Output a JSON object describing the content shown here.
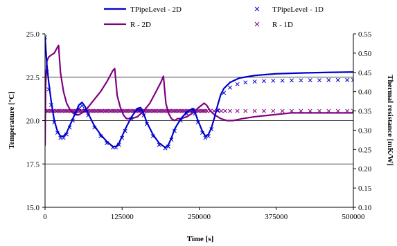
{
  "chart_data": {
    "type": "line",
    "title": "",
    "xlabel": "Time [s]",
    "ylabel_left": "Temperature [°C]",
    "ylabel_right": "Thermal resistance [mK/W]",
    "xlim": [
      0,
      500000
    ],
    "ylim_left": [
      15.0,
      25.0
    ],
    "ylim_right": [
      0.1,
      0.55
    ],
    "x_ticks": [
      "0",
      "125000",
      "250000",
      "375000",
      "500000"
    ],
    "y_left_ticks": [
      "15.0",
      "17.5",
      "20.0",
      "22.5",
      "25.0"
    ],
    "y_right_ticks": [
      "0.10",
      "0.15",
      "0.20",
      "0.25",
      "0.30",
      "0.35",
      "0.40",
      "0.45",
      "0.50",
      "0.55"
    ],
    "gridlines_y_left": [
      17.5,
      20.0,
      22.5
    ],
    "legend_position": "top",
    "series": [
      {
        "name": "TPipeLevel - 2D",
        "axis": "left",
        "style": "line",
        "color": "#0000CC",
        "points": [
          [
            0,
            24.8
          ],
          [
            3000,
            23.2
          ],
          [
            6000,
            22.2
          ],
          [
            10000,
            21.1
          ],
          [
            15000,
            20.0
          ],
          [
            20000,
            19.4
          ],
          [
            25000,
            19.1
          ],
          [
            30000,
            19.1
          ],
          [
            35000,
            19.3
          ],
          [
            40000,
            19.7
          ],
          [
            45000,
            20.1
          ],
          [
            50000,
            20.5
          ],
          [
            55000,
            20.9
          ],
          [
            60000,
            21.05
          ],
          [
            65000,
            20.8
          ],
          [
            70000,
            20.4
          ],
          [
            80000,
            19.7
          ],
          [
            90000,
            19.2
          ],
          [
            100000,
            18.8
          ],
          [
            110000,
            18.5
          ],
          [
            115000,
            18.5
          ],
          [
            120000,
            18.7
          ],
          [
            125000,
            19.1
          ],
          [
            130000,
            19.5
          ],
          [
            140000,
            20.2
          ],
          [
            150000,
            20.7
          ],
          [
            155000,
            20.75
          ],
          [
            160000,
            20.4
          ],
          [
            165000,
            19.9
          ],
          [
            175000,
            19.2
          ],
          [
            185000,
            18.7
          ],
          [
            195000,
            18.45
          ],
          [
            200000,
            18.6
          ],
          [
            205000,
            19.0
          ],
          [
            210000,
            19.5
          ],
          [
            220000,
            20.1
          ],
          [
            230000,
            20.5
          ],
          [
            240000,
            20.7
          ],
          [
            243000,
            20.5
          ],
          [
            248000,
            20.0
          ],
          [
            255000,
            19.4
          ],
          [
            260000,
            19.1
          ],
          [
            265000,
            19.2
          ],
          [
            270000,
            19.6
          ],
          [
            275000,
            20.2
          ],
          [
            280000,
            20.9
          ],
          [
            285000,
            21.5
          ],
          [
            290000,
            21.85
          ],
          [
            300000,
            22.2
          ],
          [
            315000,
            22.45
          ],
          [
            340000,
            22.6
          ],
          [
            375000,
            22.7
          ],
          [
            420000,
            22.75
          ],
          [
            460000,
            22.78
          ],
          [
            500000,
            22.8
          ]
        ]
      },
      {
        "name": "TPipeLevel - 1D",
        "axis": "left",
        "style": "markers",
        "marker": "×",
        "color": "#0000CC",
        "points": [
          [
            0,
            24.8
          ],
          [
            3000,
            22.8
          ],
          [
            6000,
            21.8
          ],
          [
            10000,
            20.9
          ],
          [
            15000,
            19.9
          ],
          [
            20000,
            19.3
          ],
          [
            25000,
            19.0
          ],
          [
            30000,
            19.0
          ],
          [
            35000,
            19.2
          ],
          [
            40000,
            19.6
          ],
          [
            45000,
            20.0
          ],
          [
            50000,
            20.4
          ],
          [
            55000,
            20.7
          ],
          [
            60000,
            20.85
          ],
          [
            65000,
            20.6
          ],
          [
            70000,
            20.3
          ],
          [
            80000,
            19.6
          ],
          [
            90000,
            19.1
          ],
          [
            100000,
            18.7
          ],
          [
            110000,
            18.45
          ],
          [
            115000,
            18.45
          ],
          [
            120000,
            18.6
          ],
          [
            125000,
            19.0
          ],
          [
            130000,
            19.4
          ],
          [
            140000,
            20.1
          ],
          [
            150000,
            20.6
          ],
          [
            155000,
            20.6
          ],
          [
            160000,
            20.3
          ],
          [
            165000,
            19.8
          ],
          [
            175000,
            19.1
          ],
          [
            185000,
            18.6
          ],
          [
            195000,
            18.4
          ],
          [
            200000,
            18.5
          ],
          [
            205000,
            18.9
          ],
          [
            210000,
            19.4
          ],
          [
            220000,
            20.0
          ],
          [
            230000,
            20.4
          ],
          [
            240000,
            20.6
          ],
          [
            243000,
            20.4
          ],
          [
            248000,
            19.9
          ],
          [
            255000,
            19.3
          ],
          [
            260000,
            19.0
          ],
          [
            265000,
            19.1
          ],
          [
            270000,
            19.5
          ],
          [
            280000,
            20.6
          ],
          [
            290000,
            21.6
          ],
          [
            300000,
            21.9
          ],
          [
            312000,
            22.1
          ],
          [
            325000,
            22.2
          ],
          [
            340000,
            22.25
          ],
          [
            355000,
            22.28
          ],
          [
            370000,
            22.3
          ],
          [
            385000,
            22.3
          ],
          [
            400000,
            22.32
          ],
          [
            415000,
            22.32
          ],
          [
            430000,
            22.33
          ],
          [
            445000,
            22.33
          ],
          [
            460000,
            22.34
          ],
          [
            475000,
            22.34
          ],
          [
            490000,
            22.34
          ],
          [
            500000,
            22.34
          ]
        ]
      },
      {
        "name": "R - 2D",
        "axis": "right",
        "style": "line",
        "color": "#800080",
        "points": [
          [
            0,
            0.26
          ],
          [
            1000,
            0.42
          ],
          [
            3000,
            0.48
          ],
          [
            6000,
            0.49
          ],
          [
            10000,
            0.495
          ],
          [
            15000,
            0.5
          ],
          [
            20000,
            0.515
          ],
          [
            22000,
            0.52
          ],
          [
            25000,
            0.45
          ],
          [
            30000,
            0.4
          ],
          [
            35000,
            0.37
          ],
          [
            40000,
            0.355
          ],
          [
            45000,
            0.345
          ],
          [
            50000,
            0.34
          ],
          [
            55000,
            0.34
          ],
          [
            60000,
            0.345
          ],
          [
            65000,
            0.35
          ],
          [
            70000,
            0.36
          ],
          [
            80000,
            0.38
          ],
          [
            90000,
            0.4
          ],
          [
            100000,
            0.425
          ],
          [
            105000,
            0.44
          ],
          [
            110000,
            0.455
          ],
          [
            113000,
            0.46
          ],
          [
            117000,
            0.39
          ],
          [
            122000,
            0.36
          ],
          [
            127000,
            0.34
          ],
          [
            132000,
            0.33
          ],
          [
            140000,
            0.33
          ],
          [
            150000,
            0.335
          ],
          [
            160000,
            0.35
          ],
          [
            170000,
            0.37
          ],
          [
            180000,
            0.4
          ],
          [
            188000,
            0.425
          ],
          [
            192000,
            0.44
          ],
          [
            196000,
            0.37
          ],
          [
            200000,
            0.345
          ],
          [
            205000,
            0.33
          ],
          [
            210000,
            0.325
          ],
          [
            215000,
            0.33
          ],
          [
            220000,
            0.33
          ],
          [
            230000,
            0.335
          ],
          [
            240000,
            0.345
          ],
          [
            250000,
            0.36
          ],
          [
            258000,
            0.37
          ],
          [
            262000,
            0.365
          ],
          [
            268000,
            0.35
          ],
          [
            275000,
            0.34
          ],
          [
            285000,
            0.33
          ],
          [
            295000,
            0.325
          ],
          [
            305000,
            0.325
          ],
          [
            320000,
            0.33
          ],
          [
            340000,
            0.335
          ],
          [
            370000,
            0.34
          ],
          [
            400000,
            0.345
          ],
          [
            450000,
            0.345
          ],
          [
            500000,
            0.345
          ]
        ]
      },
      {
        "name": "R - 1D",
        "axis": "right",
        "style": "markers",
        "marker": "×",
        "color": "#800080",
        "points": [
          [
            0,
            0.35
          ],
          [
            2500,
            0.35
          ],
          [
            5000,
            0.35
          ],
          [
            7500,
            0.35
          ],
          [
            10000,
            0.35
          ],
          [
            12500,
            0.35
          ],
          [
            15000,
            0.35
          ],
          [
            17500,
            0.35
          ],
          [
            20000,
            0.35
          ],
          [
            22500,
            0.35
          ],
          [
            25000,
            0.35
          ],
          [
            27500,
            0.35
          ],
          [
            30000,
            0.35
          ],
          [
            32500,
            0.35
          ],
          [
            35000,
            0.35
          ],
          [
            37500,
            0.35
          ],
          [
            40000,
            0.35
          ],
          [
            42500,
            0.35
          ],
          [
            45000,
            0.35
          ],
          [
            47500,
            0.35
          ],
          [
            50000,
            0.35
          ],
          [
            52500,
            0.35
          ],
          [
            55000,
            0.35
          ],
          [
            57500,
            0.35
          ],
          [
            60000,
            0.35
          ],
          [
            62500,
            0.35
          ],
          [
            65000,
            0.35
          ],
          [
            67500,
            0.35
          ],
          [
            70000,
            0.35
          ],
          [
            72500,
            0.35
          ],
          [
            75000,
            0.35
          ],
          [
            77500,
            0.35
          ],
          [
            80000,
            0.35
          ],
          [
            82500,
            0.35
          ],
          [
            85000,
            0.35
          ],
          [
            87500,
            0.35
          ],
          [
            90000,
            0.35
          ],
          [
            92500,
            0.35
          ],
          [
            95000,
            0.35
          ],
          [
            97500,
            0.35
          ],
          [
            100000,
            0.35
          ],
          [
            102500,
            0.35
          ],
          [
            105000,
            0.35
          ],
          [
            107500,
            0.35
          ],
          [
            110000,
            0.35
          ],
          [
            112500,
            0.35
          ],
          [
            115000,
            0.35
          ],
          [
            117500,
            0.35
          ],
          [
            120000,
            0.35
          ],
          [
            122500,
            0.35
          ],
          [
            125000,
            0.35
          ],
          [
            127500,
            0.35
          ],
          [
            130000,
            0.35
          ],
          [
            132500,
            0.35
          ],
          [
            135000,
            0.35
          ],
          [
            137500,
            0.35
          ],
          [
            140000,
            0.35
          ],
          [
            142500,
            0.35
          ],
          [
            145000,
            0.35
          ],
          [
            147500,
            0.35
          ],
          [
            150000,
            0.35
          ],
          [
            152500,
            0.35
          ],
          [
            155000,
            0.35
          ],
          [
            157500,
            0.35
          ],
          [
            160000,
            0.35
          ],
          [
            162500,
            0.35
          ],
          [
            165000,
            0.35
          ],
          [
            167500,
            0.35
          ],
          [
            170000,
            0.35
          ],
          [
            172500,
            0.35
          ],
          [
            175000,
            0.35
          ],
          [
            177500,
            0.35
          ],
          [
            180000,
            0.35
          ],
          [
            182500,
            0.35
          ],
          [
            185000,
            0.35
          ],
          [
            187500,
            0.35
          ],
          [
            190000,
            0.35
          ],
          [
            192500,
            0.35
          ],
          [
            195000,
            0.35
          ],
          [
            197500,
            0.35
          ],
          [
            200000,
            0.35
          ],
          [
            202500,
            0.35
          ],
          [
            205000,
            0.35
          ],
          [
            207500,
            0.35
          ],
          [
            210000,
            0.35
          ],
          [
            212500,
            0.35
          ],
          [
            215000,
            0.35
          ],
          [
            217500,
            0.35
          ],
          [
            220000,
            0.35
          ],
          [
            222500,
            0.35
          ],
          [
            225000,
            0.35
          ],
          [
            227500,
            0.35
          ],
          [
            230000,
            0.35
          ],
          [
            232500,
            0.35
          ],
          [
            235000,
            0.35
          ],
          [
            237500,
            0.35
          ],
          [
            240000,
            0.35
          ],
          [
            242500,
            0.35
          ],
          [
            245000,
            0.35
          ],
          [
            247500,
            0.35
          ],
          [
            250000,
            0.35
          ],
          [
            252500,
            0.35
          ],
          [
            255000,
            0.35
          ],
          [
            257500,
            0.35
          ],
          [
            260000,
            0.35
          ],
          [
            262500,
            0.35
          ],
          [
            268000,
            0.35
          ],
          [
            274000,
            0.35
          ],
          [
            280000,
            0.35
          ],
          [
            286000,
            0.35
          ],
          [
            292000,
            0.35
          ],
          [
            300000,
            0.35
          ],
          [
            312000,
            0.35
          ],
          [
            325000,
            0.35
          ],
          [
            340000,
            0.35
          ],
          [
            355000,
            0.35
          ],
          [
            370000,
            0.35
          ],
          [
            385000,
            0.35
          ],
          [
            400000,
            0.35
          ],
          [
            415000,
            0.35
          ],
          [
            430000,
            0.35
          ],
          [
            445000,
            0.35
          ],
          [
            460000,
            0.35
          ],
          [
            475000,
            0.35
          ],
          [
            490000,
            0.35
          ],
          [
            500000,
            0.35
          ]
        ]
      }
    ]
  }
}
